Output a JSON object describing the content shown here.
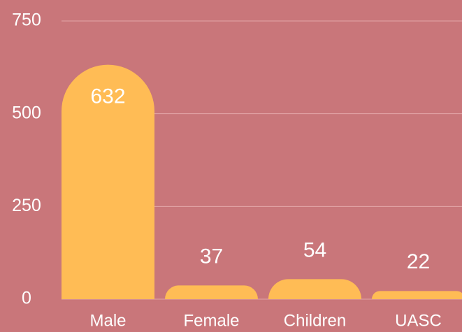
{
  "chart_data": {
    "type": "bar",
    "categories": [
      "Male",
      "Female",
      "Children",
      "UASC"
    ],
    "values": [
      632,
      37,
      54,
      22
    ],
    "color": "#ffbc55",
    "ylim": [
      0,
      750
    ],
    "yticks": [
      0,
      250,
      500,
      750
    ],
    "grid": true
  }
}
